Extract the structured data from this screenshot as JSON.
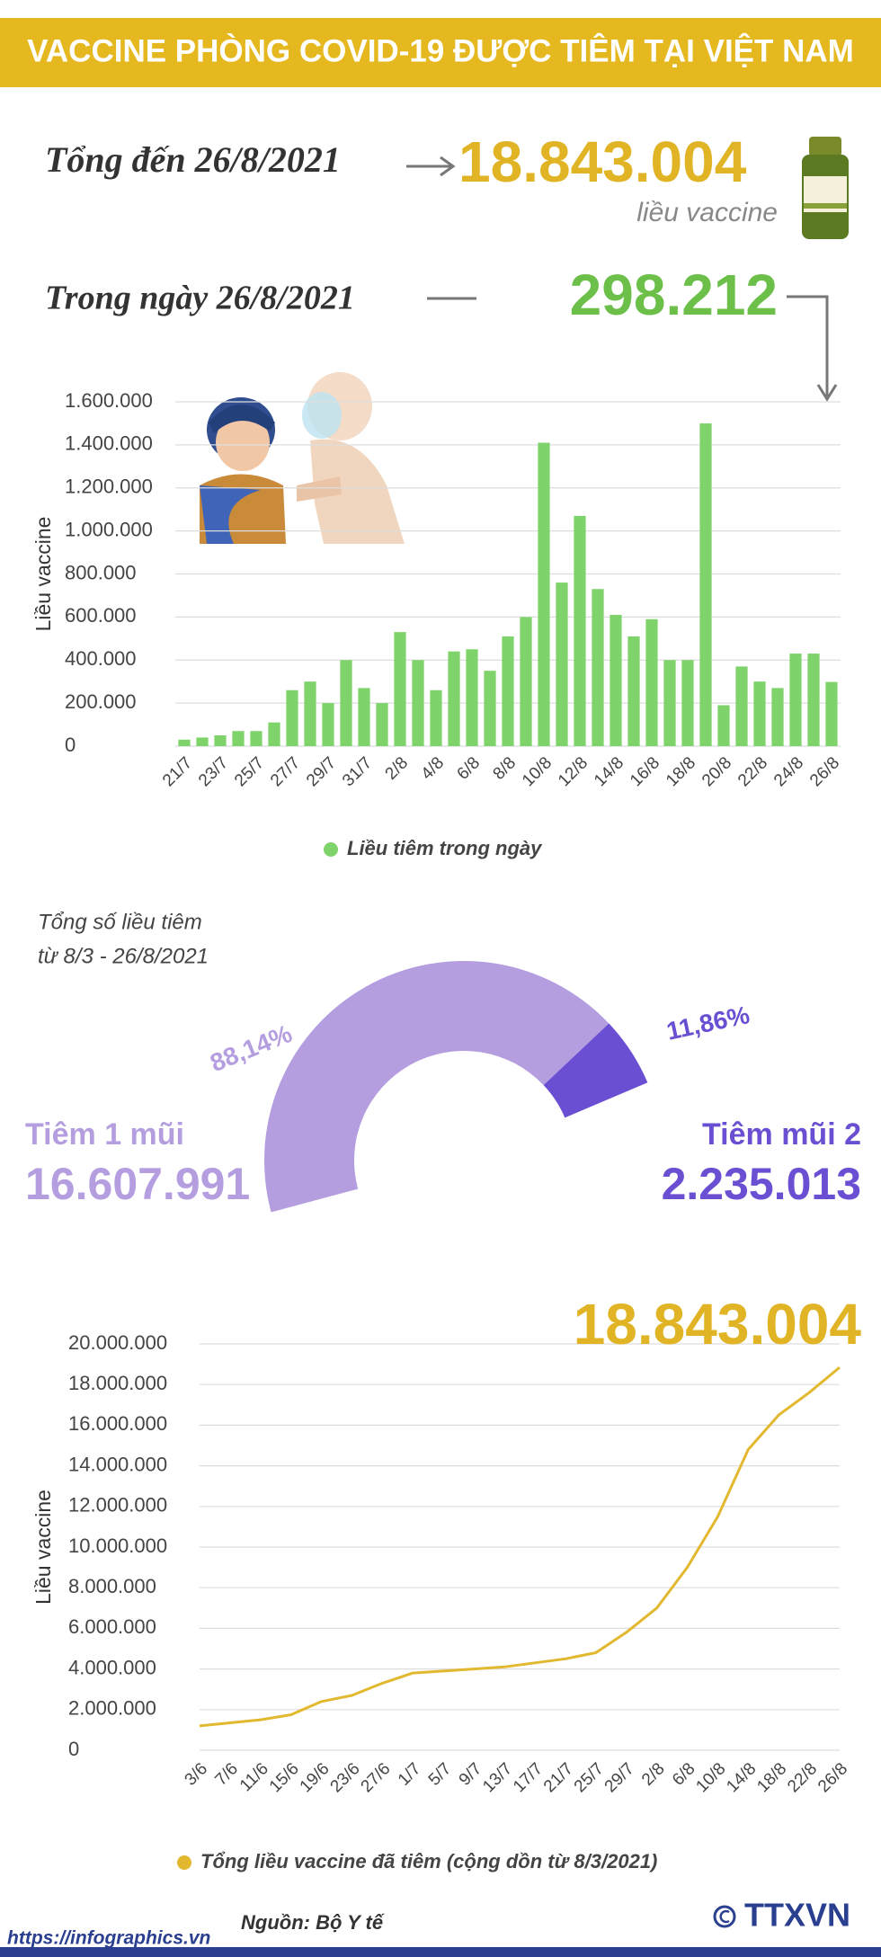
{
  "header": {
    "title": "VACCINE PHÒNG COVID-19 ĐƯỢC TIÊM TẠI VIỆT NAM"
  },
  "summary": {
    "total_label": "Tổng đến 26/8/2021",
    "total": "18.843.004",
    "total_unit": "liều vaccine",
    "day_label": "Trong ngày 26/8/2021",
    "day": "298.212"
  },
  "chart_data": [
    {
      "type": "bar",
      "y_label": "Liều vaccine",
      "categories": [
        "21/7",
        null,
        "23/7",
        null,
        "25/7",
        null,
        "27/7",
        null,
        "29/7",
        null,
        "31/7",
        null,
        "2/8",
        null,
        "4/8",
        null,
        "6/8",
        null,
        "8/8",
        null,
        "10/8",
        null,
        "12/8",
        null,
        "14/8",
        null,
        "16/8",
        null,
        "18/8",
        null,
        "20/8",
        null,
        "22/8",
        null,
        "24/8",
        null,
        "26/8"
      ],
      "series": [
        {
          "name": "Liều tiêm trong ngày",
          "color": "#7ed36a",
          "values": [
            30000,
            40000,
            50000,
            70000,
            70000,
            110000,
            260000,
            300000,
            200000,
            400000,
            270000,
            200000,
            530000,
            400000,
            260000,
            440000,
            450000,
            350000,
            510000,
            600000,
            1410000,
            760000,
            1070000,
            730000,
            610000,
            510000,
            590000,
            400000,
            400000,
            1500000,
            190000,
            370000,
            300000,
            270000,
            430000,
            430000,
            298212
          ]
        }
      ],
      "ylim": [
        0,
        1600000
      ],
      "yticks": [
        0,
        {
          "value": 200000,
          "label": "200.000"
        },
        {
          "value": 400000,
          "label": "400.000"
        },
        {
          "value": 600000,
          "label": "600.000"
        },
        {
          "value": 800000,
          "label": "800.000"
        },
        {
          "value": 1000000,
          "label": "1.000.000"
        },
        {
          "value": 1200000,
          "label": "1.200.000"
        },
        {
          "value": 1400000,
          "label": "1.400.000"
        },
        {
          "value": 1600000,
          "label": "1.600.000"
        }
      ],
      "grid": true
    },
    {
      "type": "pie",
      "title_lines": [
        "Tổng số liều tiêm",
        "từ 8/3 - 26/8/2021"
      ],
      "categories": [
        "Tiêm 1 mũi",
        "Tiêm mũi 2"
      ],
      "values": [
        88.14,
        11.86
      ],
      "value_labels": [
        "88,14%",
        "11,86%"
      ],
      "colors": [
        "#b49ee0",
        "#6a4fd3"
      ],
      "doses": [
        "16.607.991",
        "2.235.013"
      ]
    },
    {
      "type": "line",
      "y_label": "Liều vaccine",
      "annotation": "18.843.004",
      "categories": [
        "3/6",
        "7/6",
        "11/6",
        "15/6",
        "19/6",
        "23/6",
        "27/6",
        "1/7",
        "5/7",
        "9/7",
        "13/7",
        "17/7",
        "21/7",
        "25/7",
        "29/7",
        "2/8",
        "6/8",
        "10/8",
        "14/8",
        "18/8",
        "22/8",
        "26/8"
      ],
      "series": [
        {
          "name": "Tổng liều vaccine đã tiêm (cộng dồn từ 8/3/2021)",
          "color": "#e2b82f",
          "values": [
            1200000,
            1350000,
            1500000,
            1750000,
            2400000,
            2700000,
            3300000,
            3800000,
            3900000,
            4000000,
            4100000,
            4300000,
            4500000,
            4800000,
            5800000,
            7000000,
            9000000,
            11500000,
            14800000,
            16500000,
            17600000,
            18843004
          ]
        }
      ],
      "ylim": [
        0,
        20000000
      ],
      "yticks": [
        0,
        {
          "value": 2000000,
          "label": "2.000.000"
        },
        {
          "value": 4000000,
          "label": "4.000.000"
        },
        {
          "value": 6000000,
          "label": "6.000.000"
        },
        {
          "value": 8000000,
          "label": "8.000.000"
        },
        {
          "value": 10000000,
          "label": "10.000.000"
        },
        {
          "value": 12000000,
          "label": "12.000.000"
        },
        {
          "value": 14000000,
          "label": "14.000.000"
        },
        {
          "value": 16000000,
          "label": "16.000.000"
        },
        {
          "value": 18000000,
          "label": "18.000.000"
        },
        {
          "value": 20000000,
          "label": "20.000.000"
        }
      ],
      "grid": true
    }
  ],
  "footer": {
    "source": "Nguồn: Bộ Y tế",
    "url": "https://infographics.vn",
    "logo": "TTXVN"
  }
}
